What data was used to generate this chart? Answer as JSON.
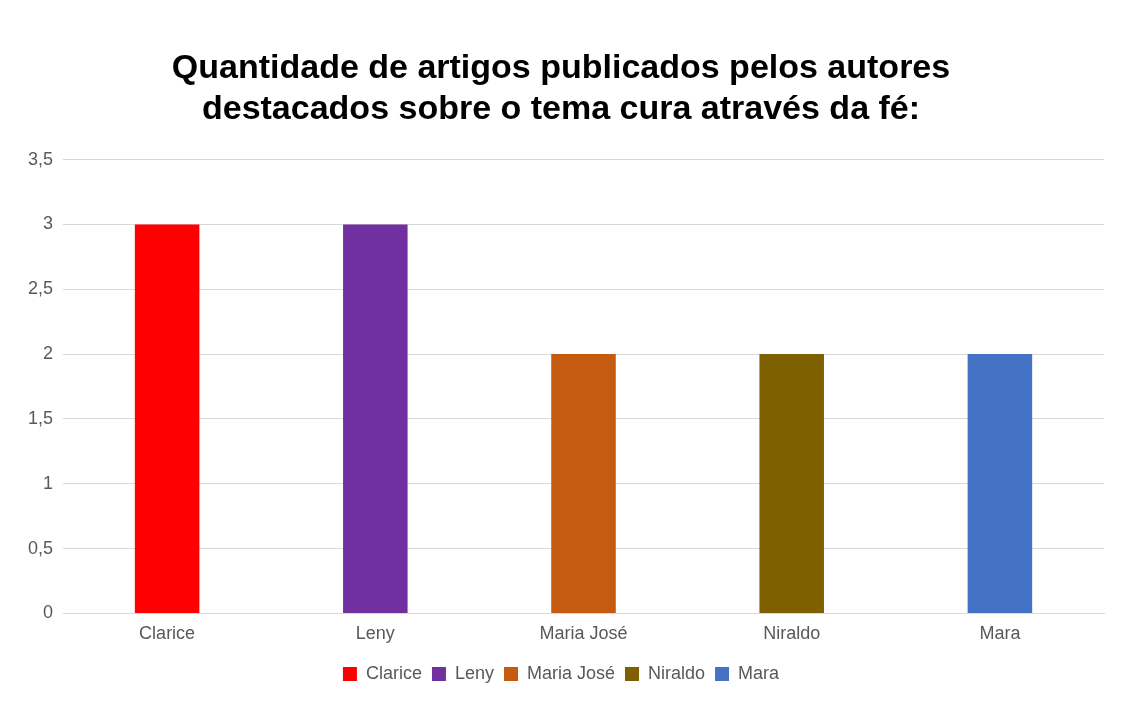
{
  "chart_data": {
    "type": "bar",
    "title": "Quantidade de artigos publicados pelos autores destacados sobre o tema cura através da fé:",
    "categories": [
      "Clarice",
      "Leny",
      "Maria José",
      "Niraldo",
      "Mara"
    ],
    "series": [
      {
        "name": "Clarice",
        "color": "#ff0000",
        "values": [
          3,
          null,
          null,
          null,
          null
        ]
      },
      {
        "name": "Leny",
        "color": "#7030a0",
        "values": [
          null,
          3,
          null,
          null,
          null
        ]
      },
      {
        "name": "Maria José",
        "color": "#c55a11",
        "values": [
          null,
          null,
          2,
          null,
          null
        ]
      },
      {
        "name": "Niraldo",
        "color": "#7f6000",
        "values": [
          null,
          null,
          null,
          2,
          null
        ]
      },
      {
        "name": "Mara",
        "color": "#4472c4",
        "values": [
          null,
          null,
          null,
          null,
          2
        ]
      }
    ],
    "stacked": true,
    "ylim": [
      0,
      3.5
    ],
    "yticks": [
      0,
      {
        "value": 0.5,
        "label": "0,5"
      },
      1,
      {
        "value": 1.5,
        "label": "1,5"
      },
      2,
      {
        "value": 2.5,
        "label": "2,5"
      },
      3,
      {
        "value": 3.5,
        "label": "3,5"
      }
    ],
    "grid": "y",
    "legend": "bottom"
  }
}
